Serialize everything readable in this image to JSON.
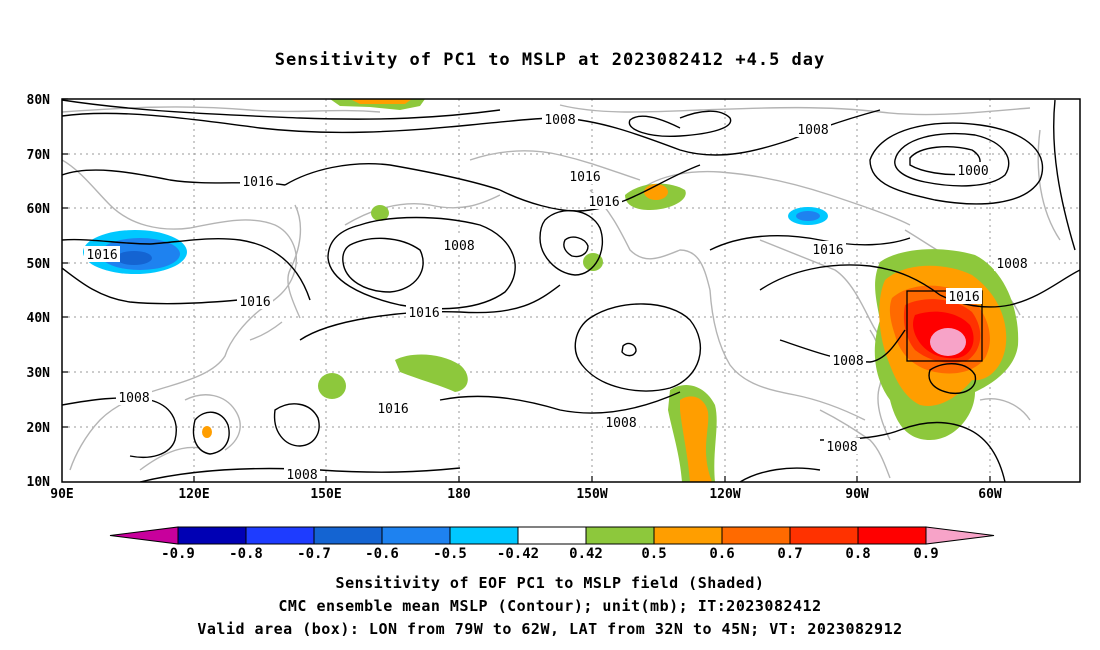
{
  "title": "Sensitivity of PC1 to MSLP at 2023082412 +4.5 day",
  "map": {
    "lat_labels": [
      "80N",
      "70N",
      "60N",
      "50N",
      "40N",
      "30N",
      "20N",
      "10N"
    ],
    "lon_labels": [
      "90E",
      "120E",
      "150E",
      "180",
      "150W",
      "120W",
      "90W",
      "60W"
    ],
    "contour_labels": [
      "1008",
      "1008",
      "1000",
      "1016",
      "1016",
      "1016",
      "1008",
      "1016",
      "1016",
      "1016",
      "1016",
      "1008",
      "1016",
      "1008",
      "1016",
      "1008",
      "1008",
      "1008"
    ],
    "valid_box": {
      "lon_from": "79W",
      "lon_to": "62W",
      "lat_from": "32N",
      "lat_to": "45N"
    }
  },
  "colorbar": {
    "labels": [
      "-0.9",
      "-0.8",
      "-0.7",
      "-0.6",
      "-0.5",
      "-0.42",
      "0.42",
      "0.5",
      "0.6",
      "0.7",
      "0.8",
      "0.9"
    ],
    "colors": [
      "#0000b4",
      "#1e3cff",
      "#1464d2",
      "#1e82f0",
      "#00c8ff",
      "#ffffff",
      "#8dc83c",
      "#ff9e00",
      "#ff6a00",
      "#ff3200",
      "#ff0000"
    ],
    "low_extend_color": "#c8009c",
    "high_extend_color": "#f7a3c8"
  },
  "captions": {
    "line1": "Sensitivity of EOF PC1 to MSLP field (Shaded)",
    "line2": "CMC ensemble mean MSLP (Contour); unit(mb); IT:2023082412",
    "line3": "Valid area (box): LON from 79W to 62W, LAT from 32N to 45N; VT: 2023082912"
  }
}
